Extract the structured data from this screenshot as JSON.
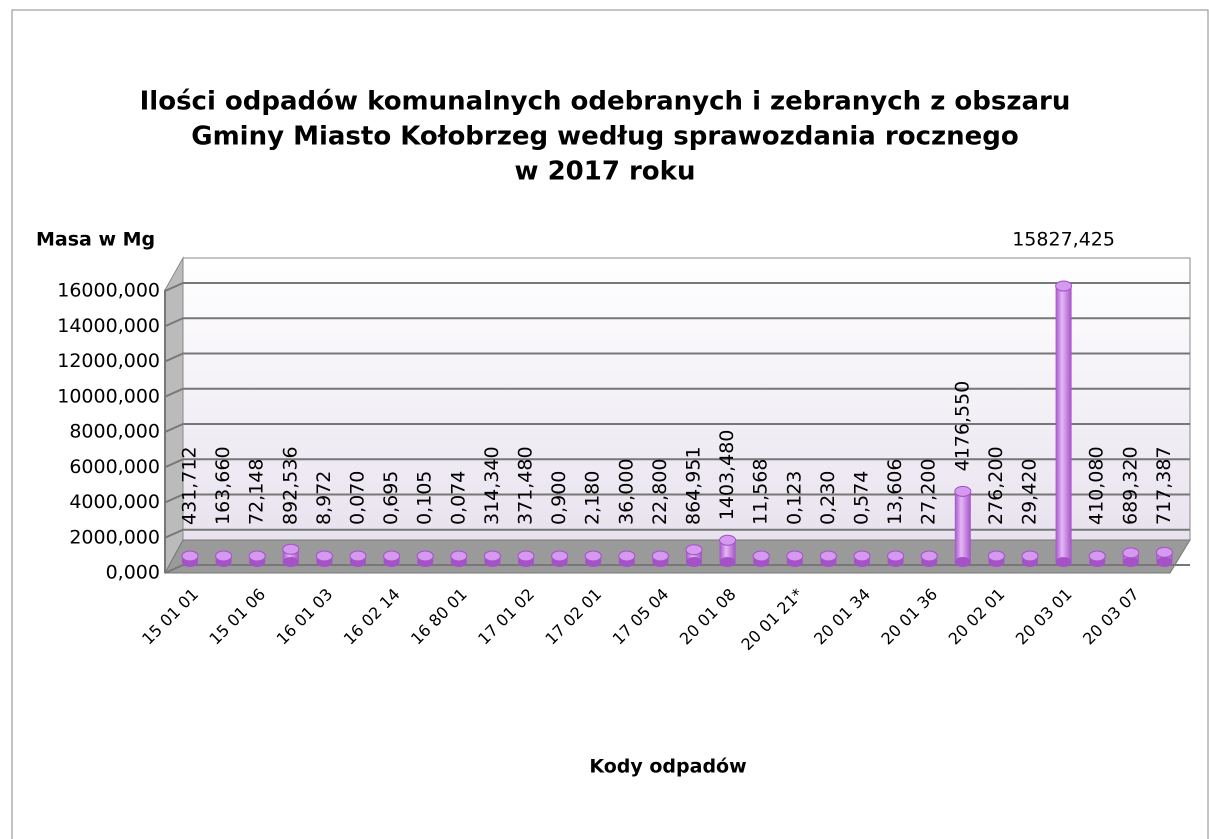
{
  "chart_data": {
    "type": "bar",
    "title": [
      "Ilości odpadów komunalnych odebranych i zebranych z obszaru",
      "Gminy Miasto Kołobrzeg według sprawozdania rocznego",
      "w 2017 roku"
    ],
    "y_label": "Masa w Mg",
    "x_label": "Kody odpadów",
    "categories": [
      "15 01 01",
      null,
      "15 01 06",
      null,
      "16 01 03",
      null,
      "16 02 14",
      null,
      "16 80 01",
      null,
      "17 01 02",
      null,
      "17 02 01",
      null,
      "17 05 04",
      null,
      "20 01 08",
      null,
      "20 01 21*",
      null,
      "20 01 34",
      null,
      "20 01 36",
      null,
      "20 02 01",
      null,
      "20 03 01",
      null,
      "20 03 07",
      null
    ],
    "values": [
      431.712,
      163.66,
      72.148,
      892.536,
      8.972,
      0.07,
      0.695,
      0.105,
      0.074,
      314.34,
      371.48,
      0.9,
      2.18,
      36,
      22.8,
      864.951,
      1403.48,
      11.568,
      0.123,
      0.23,
      0.574,
      13.606,
      27.2,
      4176.55,
      276.2,
      29.42,
      15827.425,
      410.08,
      689.32,
      717.387
    ],
    "value_labels": [
      "431,712",
      "163,660",
      "72,148",
      "892,536",
      "8,972",
      "0,070",
      "0,695",
      "0,105",
      "0,074",
      "314,340",
      "371,480",
      "0,900",
      "2,180",
      "36,000",
      "22,800",
      "864,951",
      "1403,480",
      "11,568",
      "0,123",
      "0,230",
      "0,574",
      "13,606",
      "27,200",
      "4176,550",
      "276,200",
      "29,420",
      "15827,425",
      "410,080",
      "689,320",
      "717,387"
    ],
    "color": "#a552c9",
    "ylim": [
      0,
      18000
    ],
    "yticks": [
      {
        "value": 0,
        "label": "0,000"
      },
      {
        "value": 2000,
        "label": "2000,000"
      },
      {
        "value": 4000,
        "label": "4000,000"
      },
      {
        "value": 6000,
        "label": "6000,000"
      },
      {
        "value": 8000,
        "label": "8000,000"
      },
      {
        "value": 10000,
        "label": "10000,000"
      },
      {
        "value": 12000,
        "label": "12000,000"
      },
      {
        "value": 14000,
        "label": "14000,000"
      },
      {
        "value": 16000,
        "label": "16000,000"
      }
    ],
    "grid": true
  }
}
